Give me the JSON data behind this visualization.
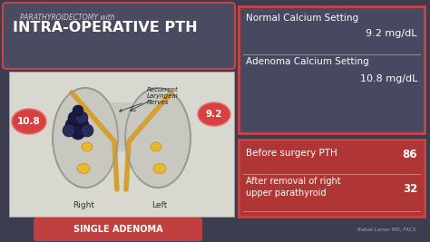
{
  "bg_color": "#3d3d50",
  "title_small": "PARATHYROIDECTOMY with",
  "title_large": "INTRA-OPERATIVE PTH",
  "title_box_bg": "#4a4a60",
  "title_box_border": "#c94444",
  "left_panel_bg": "#d8d8d0",
  "left_panel_border": "#aaaaaa",
  "annotation_text": "Recurrent\nLaryngeal\nNerves",
  "right_label": "Right",
  "left_label": "Left",
  "circle_left_val": "10.8",
  "circle_right_val": "9.2",
  "circle_color": "#d94040",
  "circle_border": "#e87070",
  "bottom_box_text": "SINGLE ADENOMA",
  "bottom_box_color": "#c04040",
  "right_upper_bg": "#484860",
  "right_upper_border": "#c94444",
  "info_line1_label": "Normal Calcium Setting",
  "info_line1_val": "9.2 mg/dL",
  "info_line2_label": "Adenoma Calcium Setting",
  "info_line2_val": "10.8 mg/dL",
  "pth_panel_bg": "#b03535",
  "pth_panel_border": "#c94444",
  "pth_line1_label": "Before surgery PTH",
  "pth_line1_val": "86",
  "pth_line2_label": "After removal of right\nupper parathyroid",
  "pth_line2_val": "32",
  "footer_text": "Babak Larian MD, FACS",
  "thyroid_fill": "#c8c8c0",
  "thyroid_edge": "#999990",
  "nerve_color": "#d4a030",
  "parathyroid_color": "#e8b830",
  "adenoma_color": "#1a1a40",
  "adenoma_highlight": "#2a2a60"
}
